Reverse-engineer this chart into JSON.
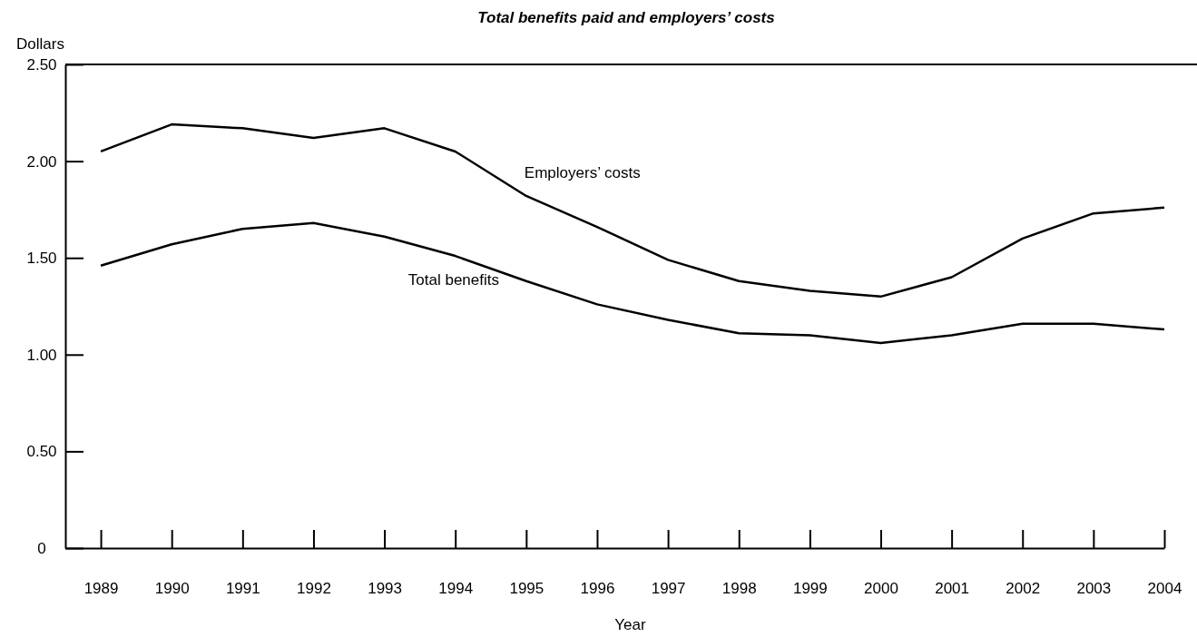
{
  "chart_data": {
    "type": "line",
    "title": "Total benefits paid and employers’ costs",
    "xlabel": "Year",
    "ylabel": "Dollars",
    "x": [
      1989,
      1990,
      1991,
      1992,
      1993,
      1994,
      1995,
      1996,
      1997,
      1998,
      1999,
      2000,
      2001,
      2002,
      2003,
      2004
    ],
    "xlim": [
      1988.5,
      2004
    ],
    "xticks": [
      1989,
      1990,
      1991,
      1992,
      1993,
      1994,
      1995,
      1996,
      1997,
      1998,
      1999,
      2000,
      2001,
      2002,
      2003,
      2004
    ],
    "ylim": [
      0,
      2.5
    ],
    "yticks": [
      0,
      {
        "value": 0.5,
        "label": "0.50"
      },
      {
        "value": 1,
        "label": "1.00"
      },
      {
        "value": 1.5,
        "label": "1.50"
      },
      {
        "value": 2,
        "label": "2.00"
      },
      {
        "value": 2.5,
        "label": "2.50"
      }
    ],
    "series": [
      {
        "name": "Employers’ costs",
        "color": "#000000",
        "values": [
          2.05,
          2.19,
          2.17,
          2.12,
          2.17,
          2.05,
          1.82,
          1.66,
          1.49,
          1.38,
          1.33,
          1.3,
          1.4,
          1.6,
          1.73,
          1.76
        ]
      },
      {
        "name": "Total benefits",
        "color": "#000000",
        "values": [
          1.46,
          1.57,
          1.65,
          1.68,
          1.61,
          1.51,
          1.38,
          1.26,
          1.18,
          1.11,
          1.1,
          1.06,
          1.1,
          1.16,
          1.16,
          1.13
        ]
      }
    ],
    "grid": false,
    "legend": false,
    "marker": "none",
    "line_style": "solid"
  }
}
